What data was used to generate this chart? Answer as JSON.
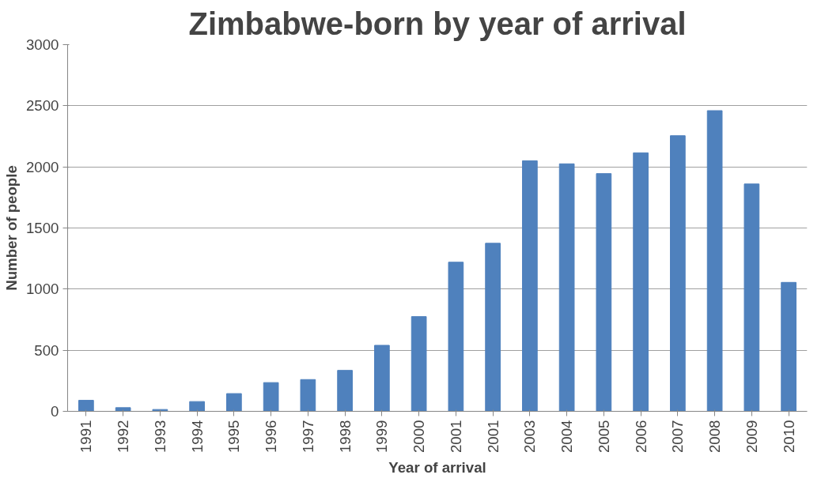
{
  "chart_data": {
    "type": "bar",
    "title": "Zimbabwe-born by year of arrival",
    "xlabel": "Year of arrival",
    "ylabel": "Number of people",
    "categories": [
      "1991",
      "1992",
      "1993",
      "1994",
      "1995",
      "1996",
      "1997",
      "1998",
      "1999",
      "2000",
      "2001",
      "2001",
      "2003",
      "2004",
      "2005",
      "2006",
      "2007",
      "2008",
      "2009",
      "2010"
    ],
    "values": [
      90,
      30,
      15,
      80,
      145,
      235,
      260,
      335,
      540,
      775,
      1220,
      1375,
      2050,
      2025,
      1945,
      2115,
      2255,
      2460,
      1860,
      1055
    ],
    "color": "#4f81bd",
    "ylim": [
      0,
      3000
    ],
    "yticks": [
      0,
      500,
      1000,
      1500,
      2000,
      2500,
      3000
    ],
    "grid": "y"
  }
}
